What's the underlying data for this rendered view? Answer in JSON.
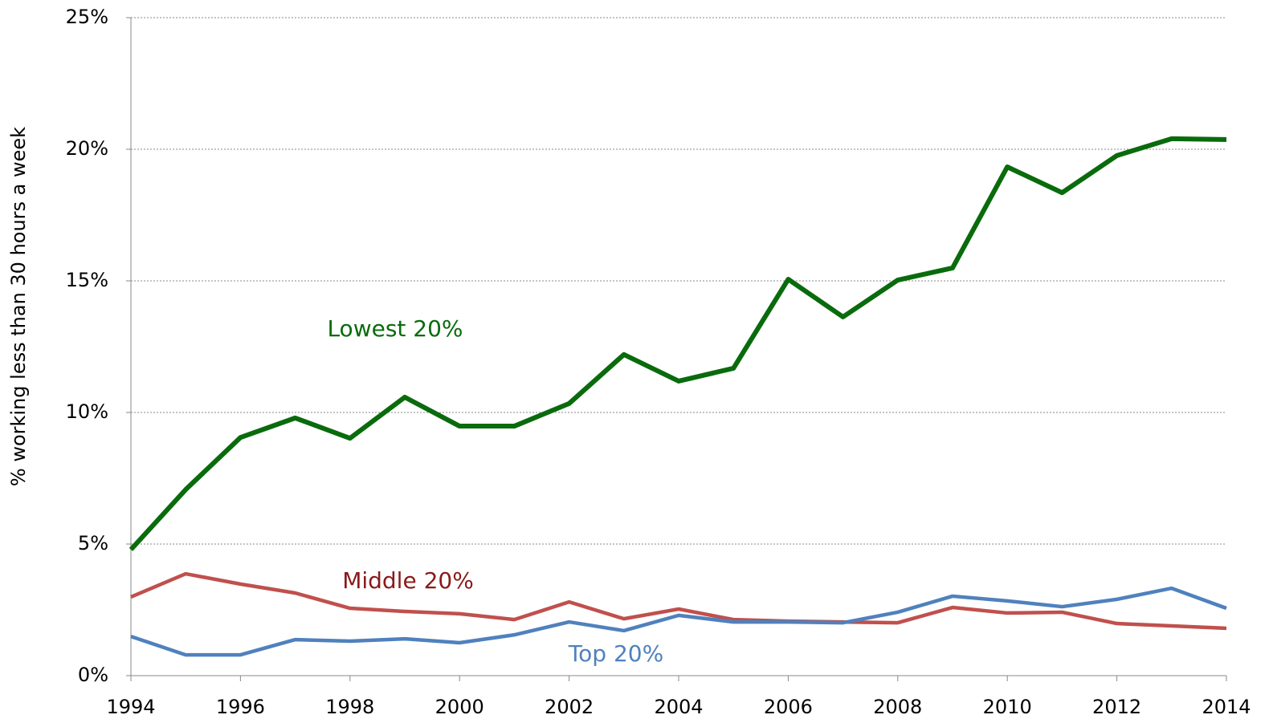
{
  "chart_data": {
    "type": "line",
    "y_label": "% working less than 30 hours a week",
    "x": [
      1994,
      1995,
      1996,
      1997,
      1998,
      1999,
      2000,
      2001,
      2002,
      2003,
      2004,
      2005,
      2006,
      2007,
      2008,
      2009,
      2010,
      2011,
      2012,
      2013,
      2014
    ],
    "series": [
      {
        "name": "Lowest 20%",
        "color": "#096b0c",
        "label_color": "#096b0c",
        "values": [
          4.79,
          7.07,
          9.05,
          9.79,
          9.02,
          10.58,
          9.48,
          9.48,
          10.34,
          12.2,
          11.19,
          11.68,
          15.06,
          13.63,
          15.03,
          15.49,
          19.33,
          18.35,
          19.76,
          20.4,
          20.37
        ]
      },
      {
        "name": "Middle 20%",
        "color": "#c0504d",
        "label_color": "#8b1a1a",
        "values": [
          2.99,
          3.87,
          3.48,
          3.14,
          2.56,
          2.44,
          2.35,
          2.13,
          2.8,
          2.16,
          2.53,
          2.13,
          2.07,
          2.04,
          2.01,
          2.59,
          2.38,
          2.41,
          1.98,
          1.89,
          1.8
        ]
      },
      {
        "name": "Top 20%",
        "color": "#4f81bd",
        "label_color": "#4f81bd",
        "values": [
          1.49,
          0.79,
          0.79,
          1.37,
          1.31,
          1.4,
          1.25,
          1.55,
          2.04,
          1.71,
          2.29,
          2.04,
          2.04,
          2.01,
          2.41,
          3.02,
          2.84,
          2.62,
          2.9,
          3.32,
          2.56
        ]
      }
    ],
    "xlim": [
      1994,
      2014
    ],
    "xticks": [
      1994,
      1996,
      1998,
      2000,
      2002,
      2004,
      2006,
      2008,
      2010,
      2012,
      2014
    ],
    "ylim": [
      0,
      25
    ],
    "yticks": [
      {
        "value": 0,
        "label": "0%"
      },
      {
        "value": 5,
        "label": "5%"
      },
      {
        "value": 10,
        "label": "10%"
      },
      {
        "value": 15,
        "label": "15%"
      },
      {
        "value": 20,
        "label": "20%"
      },
      {
        "value": 25,
        "label": "25%"
      }
    ],
    "grid": true
  }
}
